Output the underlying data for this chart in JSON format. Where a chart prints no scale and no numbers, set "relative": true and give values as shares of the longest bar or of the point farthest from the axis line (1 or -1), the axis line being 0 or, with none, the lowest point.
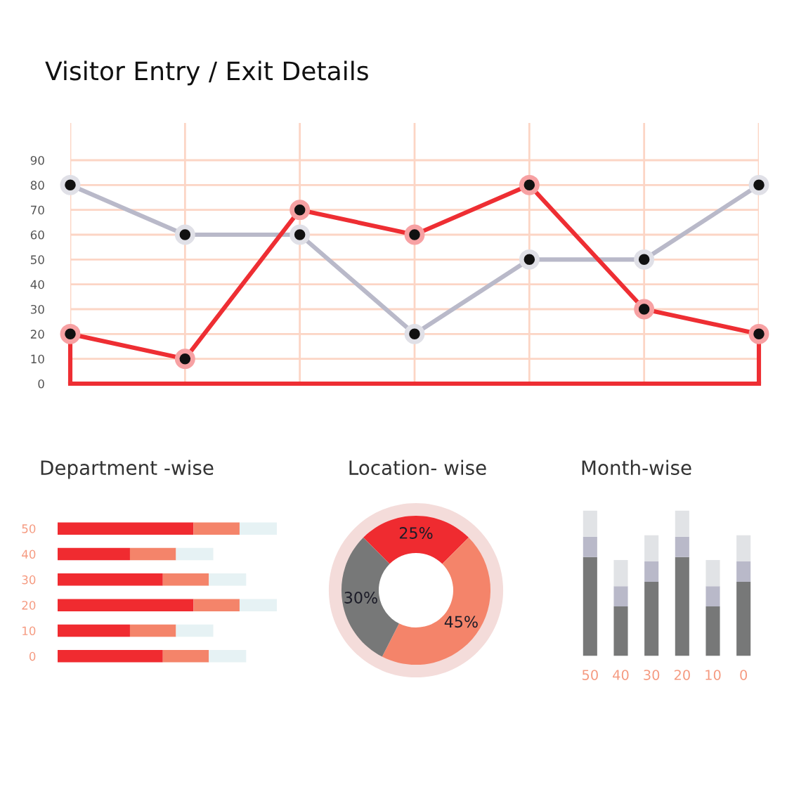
{
  "chart_data": [
    {
      "type": "line",
      "title": "Visitor Entry / Exit Details",
      "categories": [
        null,
        null,
        null,
        null,
        null,
        null,
        null
      ],
      "series": [
        {
          "color": "#ee2e33",
          "values": [
            20,
            10,
            70,
            60,
            80,
            30,
            20
          ]
        },
        {
          "color": "#b9b9c9",
          "values": [
            80,
            60,
            60,
            20,
            50,
            50,
            80
          ]
        }
      ],
      "ylim": [
        0,
        105
      ],
      "yticks": [
        0,
        10,
        20,
        30,
        40,
        50,
        60,
        70,
        80,
        90
      ],
      "grid": true,
      "marker": "circle"
    },
    {
      "type": "bar",
      "title": "Department -wise",
      "orientation": "horizontal",
      "stacked": true,
      "relative": true,
      "categories": [
        "50",
        "40",
        "30",
        "20",
        "10",
        "0"
      ],
      "series": [
        {
          "color": "#f02b30",
          "values": [
            0.62,
            0.33,
            0.48,
            0.62,
            0.33,
            0.48
          ]
        },
        {
          "color": "#f4846a",
          "values": [
            0.21,
            0.21,
            0.21,
            0.21,
            0.21,
            0.21
          ]
        },
        {
          "color": "#e6f2f4",
          "values": [
            0.17,
            0.17,
            0.17,
            0.17,
            0.17,
            0.17
          ]
        }
      ]
    },
    {
      "type": "donut",
      "title": "Location- wise",
      "categories": [
        null,
        null,
        null
      ],
      "values": [
        25,
        45,
        30
      ],
      "colors": [
        "#ef2b30",
        "#f4846a",
        "#777878"
      ],
      "value_labels": [
        "25%",
        "45%",
        "30%"
      ]
    },
    {
      "type": "bar",
      "title": "Month-wise",
      "stacked": true,
      "relative": true,
      "categories": [
        "50",
        "40",
        "30",
        "20",
        "10",
        "0"
      ],
      "series": [
        {
          "color": "#777878",
          "values": [
            0.68,
            0.34,
            0.51,
            0.68,
            0.34,
            0.51
          ]
        },
        {
          "color": "#b9b9c9",
          "values": [
            0.14,
            0.14,
            0.14,
            0.14,
            0.14,
            0.14
          ]
        },
        {
          "color": "#e1e3e6",
          "values": [
            0.18,
            0.18,
            0.18,
            0.18,
            0.18,
            0.18
          ]
        }
      ]
    }
  ]
}
